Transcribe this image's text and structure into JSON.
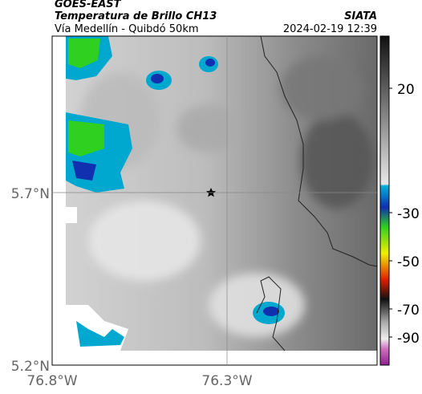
{
  "header": {
    "title": "GOES-EAST",
    "subtitle": "Temperatura de Brillo CH13",
    "source": "SIATA",
    "location": "Vía Medellín - Quibdó 50km",
    "timestamp": "2024-02-19 12:39"
  },
  "axes": {
    "lat_ticks": [
      "5.7°N",
      "5.2°N"
    ],
    "lon_ticks": [
      "76.8°W",
      "76.3°W"
    ]
  },
  "colorbar": {
    "ticks": [
      "20",
      "-30",
      "-50",
      "-70",
      "-90"
    ]
  }
}
